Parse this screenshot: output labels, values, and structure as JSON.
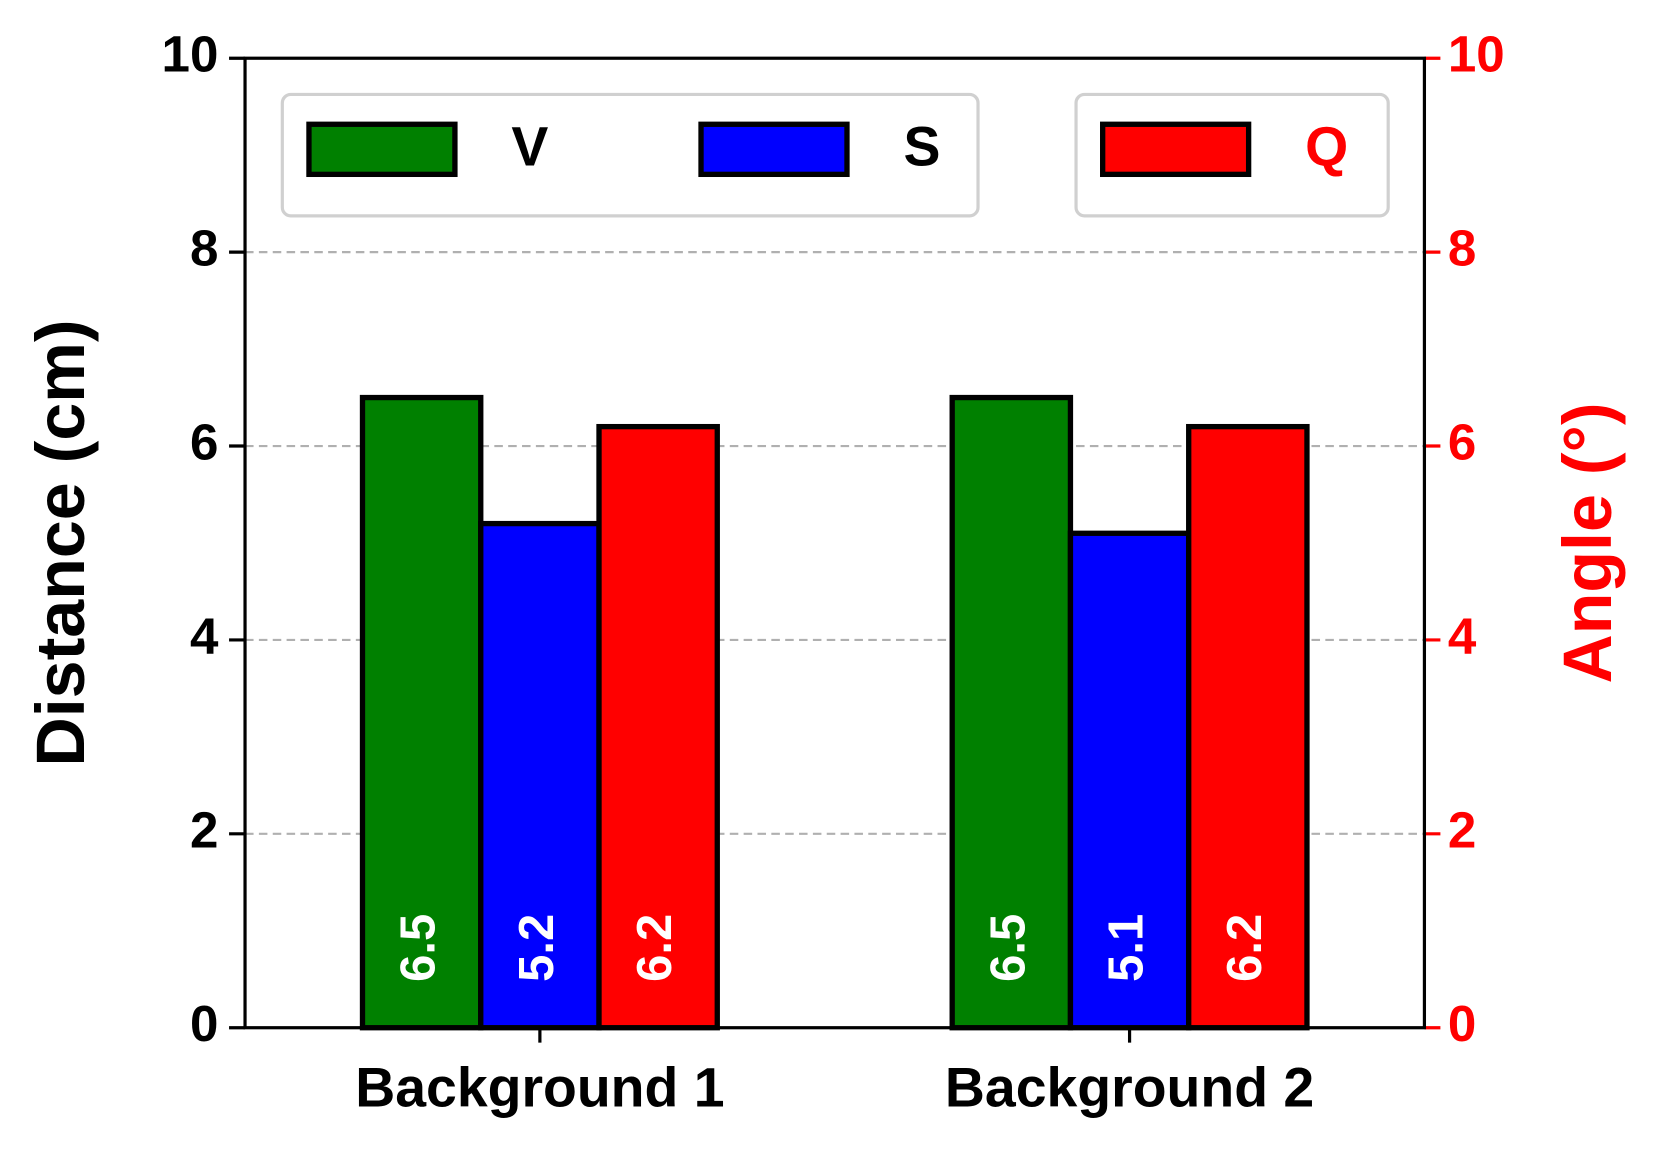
{
  "chart_data": {
    "type": "bar",
    "categories": [
      "Background 1",
      "Background 2"
    ],
    "series": [
      {
        "name": "V",
        "color": "#008000",
        "values": [
          6.5,
          6.5
        ]
      },
      {
        "name": "S",
        "color": "#0000ff",
        "values": [
          5.2,
          5.1
        ]
      },
      {
        "name": "Q",
        "color": "#ff0000",
        "values": [
          6.2,
          6.2
        ],
        "axis": "y2"
      }
    ],
    "ylabel": "Distance (cm)",
    "y2label": "Angle (°)",
    "ylim": [
      0,
      10
    ],
    "yticks": [
      0,
      2,
      4,
      6,
      8,
      10
    ],
    "y2lim": [
      0,
      10
    ],
    "y2ticks": [
      0,
      2,
      4,
      6,
      8,
      10
    ],
    "y2color": "#ff0000",
    "grid": true
  }
}
